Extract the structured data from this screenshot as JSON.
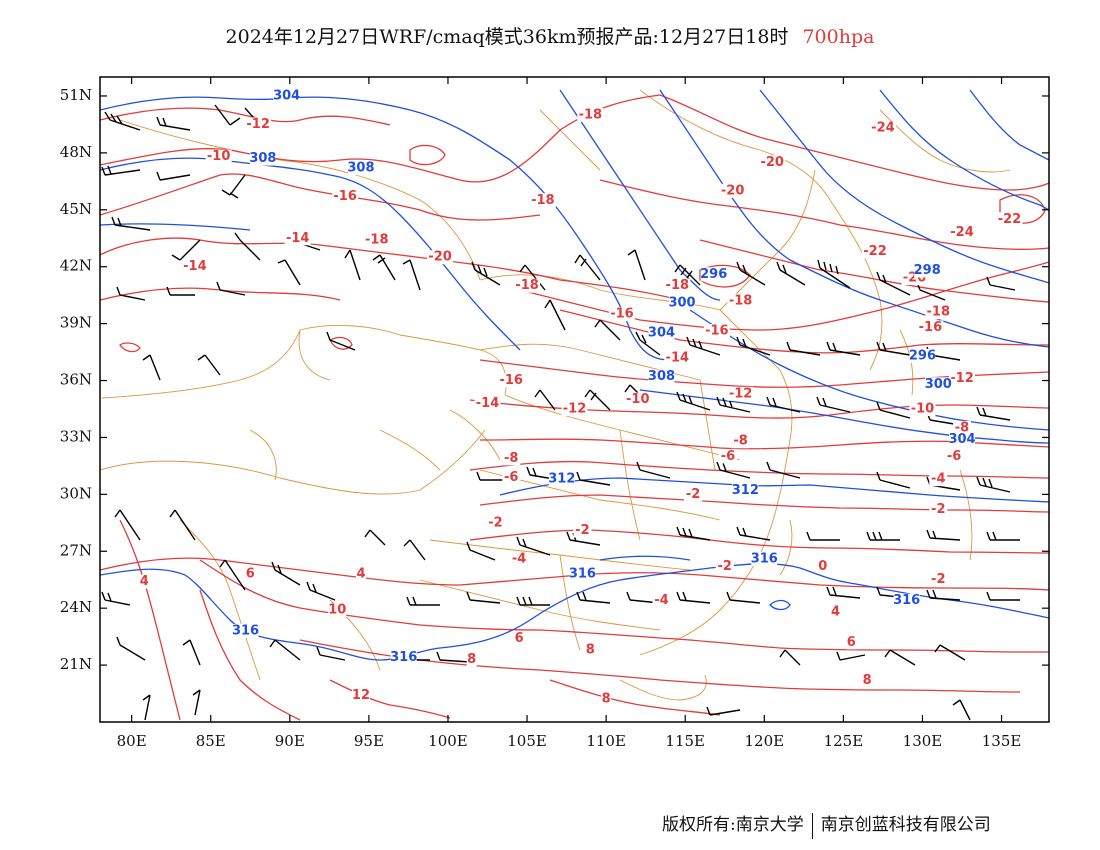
{
  "title": {
    "main": "2024年12月27日WRF/cmaq模式36km预报产品:12月27日18时",
    "level": "700hpa"
  },
  "footer": {
    "copyright": "版权所有:南京大学",
    "company": "南京创蓝科技有限公司"
  },
  "colors": {
    "temperature": "#e23b3b",
    "height": "#1f4fe0",
    "borders": "#e0953e",
    "wind": "#000000"
  },
  "axes": {
    "x_ticks": [
      "80E",
      "85E",
      "90E",
      "95E",
      "100E",
      "105E",
      "110E",
      "115E",
      "120E",
      "125E",
      "130E",
      "135E"
    ],
    "y_ticks": [
      "51N",
      "48N",
      "45N",
      "42N",
      "39N",
      "36N",
      "33N",
      "30N",
      "27N",
      "24N",
      "21N"
    ]
  },
  "map_data": {
    "lon_range": [
      78,
      138
    ],
    "lat_range": [
      18,
      52
    ],
    "temperature_labels": [
      {
        "text": "-12",
        "lon": 88,
        "lat": 49.5
      },
      {
        "text": "-10",
        "lon": 85.5,
        "lat": 47.8
      },
      {
        "text": "-16",
        "lon": 93.5,
        "lat": 45.7
      },
      {
        "text": "-14",
        "lon": 90.5,
        "lat": 43.5
      },
      {
        "text": "-14",
        "lon": 84,
        "lat": 42
      },
      {
        "text": "-18",
        "lon": 95.5,
        "lat": 43.4
      },
      {
        "text": "-18",
        "lon": 106,
        "lat": 45.5
      },
      {
        "text": "-20",
        "lon": 99.5,
        "lat": 42.5
      },
      {
        "text": "-18",
        "lon": 109,
        "lat": 50
      },
      {
        "text": "-18",
        "lon": 105,
        "lat": 41
      },
      {
        "text": "-20",
        "lon": 118,
        "lat": 46
      },
      {
        "text": "-20",
        "lon": 120.5,
        "lat": 47.5
      },
      {
        "text": "-24",
        "lon": 127.5,
        "lat": 49.3
      },
      {
        "text": "-22",
        "lon": 135.5,
        "lat": 44.5
      },
      {
        "text": "-24",
        "lon": 132.5,
        "lat": 43.8
      },
      {
        "text": "-22",
        "lon": 127,
        "lat": 42.8
      },
      {
        "text": "-20",
        "lon": 129.5,
        "lat": 41.4
      },
      {
        "text": "-18",
        "lon": 114.5,
        "lat": 41
      },
      {
        "text": "-18",
        "lon": 118.5,
        "lat": 40.2
      },
      {
        "text": "-18",
        "lon": 131,
        "lat": 39.6
      },
      {
        "text": "-16",
        "lon": 130.5,
        "lat": 38.8
      },
      {
        "text": "-16",
        "lon": 111,
        "lat": 39.5
      },
      {
        "text": "-14",
        "lon": 114.5,
        "lat": 37.2
      },
      {
        "text": "-16",
        "lon": 117,
        "lat": 38.6
      },
      {
        "text": "-16",
        "lon": 104,
        "lat": 36
      },
      {
        "text": "-14",
        "lon": 102.5,
        "lat": 34.8
      },
      {
        "text": "-12",
        "lon": 108,
        "lat": 34.5
      },
      {
        "text": "-12",
        "lon": 132.5,
        "lat": 36.1
      },
      {
        "text": "-10",
        "lon": 112,
        "lat": 35
      },
      {
        "text": "-12",
        "lon": 118.5,
        "lat": 35.3
      },
      {
        "text": "-10",
        "lon": 130,
        "lat": 34.5
      },
      {
        "text": "-8",
        "lon": 132.5,
        "lat": 33.5
      },
      {
        "text": "-8",
        "lon": 118.5,
        "lat": 32.8
      },
      {
        "text": "-6",
        "lon": 117.7,
        "lat": 32
      },
      {
        "text": "-6",
        "lon": 132,
        "lat": 32
      },
      {
        "text": "-8",
        "lon": 104,
        "lat": 31.9
      },
      {
        "text": "-6",
        "lon": 104,
        "lat": 30.9
      },
      {
        "text": "-4",
        "lon": 131,
        "lat": 30.8
      },
      {
        "text": "-2",
        "lon": 115.5,
        "lat": 30
      },
      {
        "text": "-2",
        "lon": 131,
        "lat": 29.2
      },
      {
        "text": "-2",
        "lon": 103,
        "lat": 28.5
      },
      {
        "text": "-2",
        "lon": 108.5,
        "lat": 28.1
      },
      {
        "text": "-2",
        "lon": 117.5,
        "lat": 26.2
      },
      {
        "text": "0",
        "lon": 123.7,
        "lat": 26.2
      },
      {
        "text": "-2",
        "lon": 131,
        "lat": 25.5
      },
      {
        "text": "-4",
        "lon": 104.5,
        "lat": 26.6
      },
      {
        "text": "4",
        "lon": 80.8,
        "lat": 25.4
      },
      {
        "text": "6",
        "lon": 87.5,
        "lat": 25.8
      },
      {
        "text": "4",
        "lon": 94.5,
        "lat": 25.8
      },
      {
        "text": "-4",
        "lon": 113.5,
        "lat": 24.4
      },
      {
        "text": "4",
        "lon": 124.5,
        "lat": 23.8
      },
      {
        "text": "10",
        "lon": 93,
        "lat": 23.9
      },
      {
        "text": "6",
        "lon": 104.5,
        "lat": 22.4
      },
      {
        "text": "6",
        "lon": 125.5,
        "lat": 22.2
      },
      {
        "text": "8",
        "lon": 101.5,
        "lat": 21.3
      },
      {
        "text": "8",
        "lon": 109,
        "lat": 21.8
      },
      {
        "text": "12",
        "lon": 94.5,
        "lat": 19.4
      },
      {
        "text": "8",
        "lon": 110,
        "lat": 19.2
      },
      {
        "text": "8",
        "lon": 126.5,
        "lat": 20.2
      }
    ],
    "height_labels": [
      {
        "text": "304",
        "lon": 89.8,
        "lat": 51
      },
      {
        "text": "308",
        "lon": 88.3,
        "lat": 47.7
      },
      {
        "text": "308",
        "lon": 94.5,
        "lat": 47.2
      },
      {
        "text": "296",
        "lon": 116.8,
        "lat": 41.6
      },
      {
        "text": "300",
        "lon": 114.8,
        "lat": 40.1
      },
      {
        "text": "298",
        "lon": 130.3,
        "lat": 41.8
      },
      {
        "text": "304",
        "lon": 113.5,
        "lat": 38.5
      },
      {
        "text": "308",
        "lon": 113.5,
        "lat": 36.2
      },
      {
        "text": "300",
        "lon": 131,
        "lat": 35.8
      },
      {
        "text": "296",
        "lon": 130,
        "lat": 37.3
      },
      {
        "text": "304",
        "lon": 132.5,
        "lat": 32.9
      },
      {
        "text": "312",
        "lon": 107.2,
        "lat": 30.8
      },
      {
        "text": "312",
        "lon": 118.8,
        "lat": 30.2
      },
      {
        "text": "316",
        "lon": 120,
        "lat": 26.6
      },
      {
        "text": "316",
        "lon": 108.5,
        "lat": 25.8
      },
      {
        "text": "316",
        "lon": 129,
        "lat": 24.4
      },
      {
        "text": "316",
        "lon": 87.2,
        "lat": 22.8
      },
      {
        "text": "316",
        "lon": 97.2,
        "lat": 21.4
      }
    ]
  }
}
